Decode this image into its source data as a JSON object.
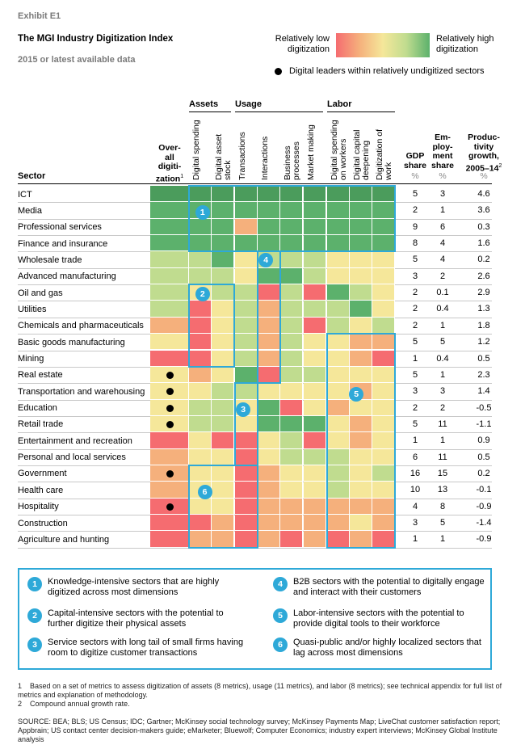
{
  "header": {
    "exhibit": "Exhibit E1",
    "title": "The MGI Industry Digitization Index",
    "subtitle": "2015 or latest available data"
  },
  "legend": {
    "low_line1": "Relatively low",
    "low_line2": "digitization",
    "high_line1": "Relatively high",
    "high_line2": "digitization",
    "dot_text": "Digital leaders within relatively undigitized sectors",
    "colors": {
      "very_low": "#f56c70",
      "low": "#f5b07c",
      "mid": "#f5e79a",
      "high": "#c0dc8f",
      "very_high": "#5cb16c",
      "darkest": "#4b9c5c"
    }
  },
  "chart_data": {
    "type": "heatmap",
    "title": "The MGI Industry Digitization Index",
    "subtitle": "2015 or latest available data",
    "column_groups": [
      {
        "name": "Assets",
        "columns": [
          "Digital spending",
          "Digital asset stock"
        ]
      },
      {
        "name": "Usage",
        "columns": [
          "Transactions",
          "Interactions",
          "Business processes",
          "Market making"
        ]
      },
      {
        "name": "Labor",
        "columns": [
          "Digital spending on workers",
          "Digital capital deepening",
          "Digitization of work"
        ]
      }
    ],
    "columns": [
      "Overall digitization",
      "Digital spending",
      "Digital asset stock",
      "Transactions",
      "Interactions",
      "Business processes",
      "Market making",
      "Digital spending on workers",
      "Digital capital deepening",
      "Digitization of work"
    ],
    "color_scale": "1 = relatively low digitization, 6 = relatively high digitization",
    "rows": [
      {
        "sector": "ICT",
        "levels": [
          6,
          6,
          6,
          6,
          6,
          6,
          6,
          6,
          6,
          6
        ],
        "leader": false,
        "gdp_share": "5",
        "employment_share": "3",
        "productivity_growth": "4.6"
      },
      {
        "sector": "Media",
        "levels": [
          5,
          5,
          5,
          5,
          5,
          5,
          5,
          5,
          5,
          5
        ],
        "leader": false,
        "gdp_share": "2",
        "employment_share": "1",
        "productivity_growth": "3.6"
      },
      {
        "sector": "Professional services",
        "levels": [
          5,
          5,
          5,
          2,
          5,
          5,
          5,
          5,
          5,
          5
        ],
        "leader": false,
        "gdp_share": "9",
        "employment_share": "6",
        "productivity_growth": "0.3"
      },
      {
        "sector": "Finance and insurance",
        "levels": [
          5,
          5,
          5,
          5,
          5,
          5,
          5,
          5,
          5,
          5
        ],
        "leader": false,
        "gdp_share": "8",
        "employment_share": "4",
        "productivity_growth": "1.6"
      },
      {
        "sector": "Wholesale trade",
        "levels": [
          4,
          4,
          5,
          3,
          4,
          4,
          4,
          3,
          3,
          3
        ],
        "leader": false,
        "gdp_share": "5",
        "employment_share": "4",
        "productivity_growth": "0.2"
      },
      {
        "sector": "Advanced manufacturing",
        "levels": [
          4,
          4,
          4,
          3,
          5,
          5,
          4,
          3,
          3,
          3
        ],
        "leader": false,
        "gdp_share": "3",
        "employment_share": "2",
        "productivity_growth": "2.6"
      },
      {
        "sector": "Oil and gas",
        "levels": [
          4,
          3,
          4,
          4,
          1,
          4,
          1,
          5,
          4,
          3
        ],
        "leader": false,
        "gdp_share": "2",
        "employment_share": "0.1",
        "productivity_growth": "2.9"
      },
      {
        "sector": "Utilities",
        "levels": [
          4,
          1,
          3,
          4,
          2,
          4,
          4,
          4,
          5,
          3
        ],
        "leader": false,
        "gdp_share": "2",
        "employment_share": "0.4",
        "productivity_growth": "1.3"
      },
      {
        "sector": "Chemicals and pharmaceuticals",
        "levels": [
          2,
          1,
          3,
          4,
          2,
          4,
          1,
          4,
          3,
          4
        ],
        "leader": false,
        "gdp_share": "2",
        "employment_share": "1",
        "productivity_growth": "1.8"
      },
      {
        "sector": "Basic goods manufacturing",
        "levels": [
          3,
          1,
          3,
          4,
          2,
          4,
          3,
          3,
          2,
          2
        ],
        "leader": false,
        "gdp_share": "5",
        "employment_share": "5",
        "productivity_growth": "1.2"
      },
      {
        "sector": "Mining",
        "levels": [
          1,
          1,
          3,
          4,
          2,
          4,
          3,
          3,
          2,
          1
        ],
        "leader": false,
        "gdp_share": "1",
        "employment_share": "0.4",
        "productivity_growth": "0.5"
      },
      {
        "sector": "Real estate",
        "levels": [
          3,
          2,
          3,
          5,
          1,
          4,
          4,
          3,
          3,
          3
        ],
        "leader": true,
        "gdp_share": "5",
        "employment_share": "1",
        "productivity_growth": "2.3"
      },
      {
        "sector": "Transportation and warehousing",
        "levels": [
          3,
          3,
          4,
          4,
          3,
          3,
          3,
          3,
          2,
          3
        ],
        "leader": true,
        "gdp_share": "3",
        "employment_share": "3",
        "productivity_growth": "1.4"
      },
      {
        "sector": "Education",
        "levels": [
          3,
          4,
          4,
          3,
          5,
          1,
          3,
          2,
          3,
          3
        ],
        "leader": true,
        "gdp_share": "2",
        "employment_share": "2",
        "productivity_growth": "-0.5"
      },
      {
        "sector": "Retail trade",
        "levels": [
          3,
          4,
          4,
          3,
          5,
          5,
          5,
          3,
          2,
          3
        ],
        "leader": true,
        "gdp_share": "5",
        "employment_share": "11",
        "productivity_growth": "-1.1"
      },
      {
        "sector": "Entertainment and recreation",
        "levels": [
          1,
          3,
          1,
          1,
          3,
          4,
          1,
          3,
          2,
          3
        ],
        "leader": false,
        "gdp_share": "1",
        "employment_share": "1",
        "productivity_growth": "0.9"
      },
      {
        "sector": "Personal and local services",
        "levels": [
          2,
          3,
          3,
          1,
          3,
          4,
          4,
          4,
          3,
          3
        ],
        "leader": false,
        "gdp_share": "6",
        "employment_share": "11",
        "productivity_growth": "0.5"
      },
      {
        "sector": "Government",
        "levels": [
          2,
          3,
          3,
          1,
          2,
          3,
          3,
          4,
          3,
          4
        ],
        "leader": true,
        "gdp_share": "16",
        "employment_share": "15",
        "productivity_growth": "0.2"
      },
      {
        "sector": "Health care",
        "levels": [
          2,
          3,
          3,
          1,
          2,
          3,
          3,
          4,
          3,
          3
        ],
        "leader": false,
        "gdp_share": "10",
        "employment_share": "13",
        "productivity_growth": "-0.1"
      },
      {
        "sector": "Hospitality",
        "levels": [
          1,
          3,
          3,
          1,
          2,
          2,
          2,
          2,
          2,
          2
        ],
        "leader": true,
        "gdp_share": "4",
        "employment_share": "8",
        "productivity_growth": "-0.9"
      },
      {
        "sector": "Construction",
        "levels": [
          1,
          1,
          2,
          1,
          2,
          2,
          2,
          2,
          3,
          2
        ],
        "leader": false,
        "gdp_share": "3",
        "employment_share": "5",
        "productivity_growth": "-1.4"
      },
      {
        "sector": "Agriculture and hunting",
        "levels": [
          1,
          2,
          2,
          1,
          2,
          1,
          2,
          1,
          2,
          1
        ],
        "leader": false,
        "gdp_share": "1",
        "employment_share": "1",
        "productivity_growth": "-0.9"
      }
    ]
  },
  "table": {
    "group_assets": "Assets",
    "group_usage": "Usage",
    "group_labor": "Labor",
    "col_sector": "Sector",
    "col_overall": "Over-\nall\ndigiti-\nzation",
    "col_overall_sup": "1",
    "metric_headers": [
      "Digital spending",
      "Digital asset\nstock",
      "Transactions",
      "Interactions",
      "Business\nprocesses",
      "Market making",
      "Digital spending\non workers",
      "Digital capital\ndeepening",
      "Digitization of\nwork"
    ],
    "col_gdp": "GDP\nshare",
    "col_emp": "Em-\nploy-\nment\nshare",
    "col_prod": "Produc-\ntivity\ngrowth,\n2005–14",
    "col_prod_sup": "2",
    "pct": "%"
  },
  "clusters": [
    {
      "num": "1",
      "text": "Knowledge-intensive sectors that are highly digitized across most dimensions"
    },
    {
      "num": "2",
      "text": "Capital-intensive sectors with the potential to further digitize their physical assets"
    },
    {
      "num": "3",
      "text": "Service sectors with long tail of small firms having room to digitize customer transactions"
    },
    {
      "num": "4",
      "text": "B2B sectors with the potential to digitally engage and interact with their customers"
    },
    {
      "num": "5",
      "text": "Labor-intensive sectors with the potential to provide digital tools to their workforce"
    },
    {
      "num": "6",
      "text": "Quasi-public and/or highly localized sectors that lag across most dimensions"
    }
  ],
  "footnotes": [
    {
      "num": "1",
      "text": "Based on a set of metrics to assess digitization of assets (8 metrics), usage (11 metrics), and labor (8 metrics); see technical appendix for full list of metrics and explanation of methodology."
    },
    {
      "num": "2",
      "text": "Compound annual growth rate."
    }
  ],
  "source": "SOURCE:  BEA; BLS; US Census; IDC; Gartner; McKinsey social technology survey; McKinsey Payments Map; LiveChat customer satisfaction report; Appbrain; US contact center decision-makers guide; eMarketer; Bluewolf; Computer Economics; industry expert interviews; McKinsey Global Institute analysis"
}
